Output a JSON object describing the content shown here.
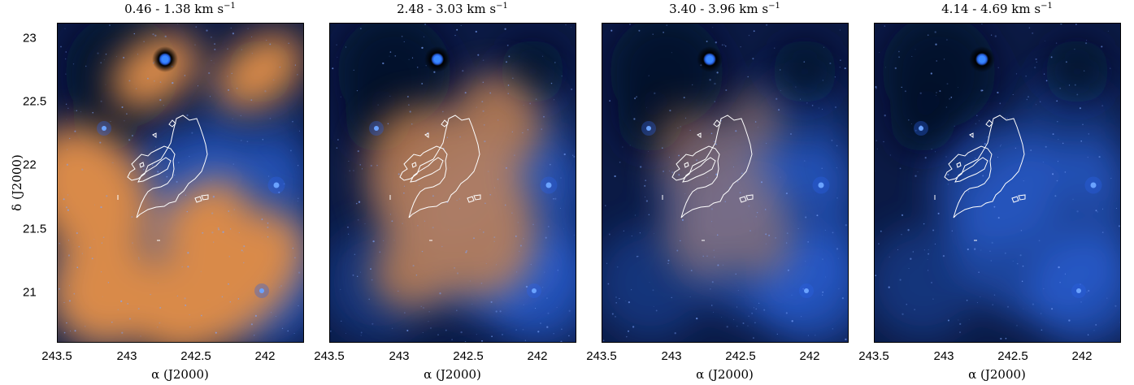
{
  "figure": {
    "panels": [
      {
        "title_main": "0.46 - 1.38 km s",
        "title_exp": "−1",
        "orange_strength": 1.0
      },
      {
        "title_main": "2.48 - 3.03 km s",
        "title_exp": "−1",
        "orange_strength": 0.75
      },
      {
        "title_main": "3.40 - 3.96 km s",
        "title_exp": "−1",
        "orange_strength": 0.45
      },
      {
        "title_main": "4.14 - 4.69 km s",
        "title_exp": "−1",
        "orange_strength": 0.0
      }
    ],
    "x_axis": {
      "label": "α (J2000)",
      "ticks": [
        "243.5",
        "243",
        "242.5",
        "242"
      ]
    },
    "y_axis": {
      "label": "δ (J2000)",
      "ticks": [
        "23",
        "22.5",
        "22",
        "21.5",
        "21"
      ]
    },
    "colors": {
      "background": "#0b1a45",
      "blue_glow": "#2f6df0",
      "orange": "#d98a4a",
      "contour": "#ffffff"
    }
  }
}
